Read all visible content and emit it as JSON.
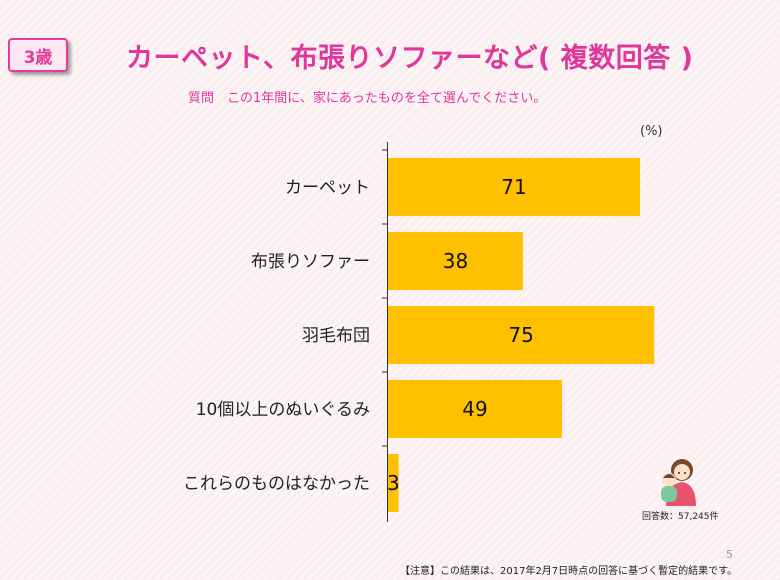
{
  "badge": "3歳",
  "title": "カーペット、布張りソファーなど( 複数回答 )",
  "subtitle": "質問　この1年間に、家にあったものを全て選んでください。",
  "unit": "(%)",
  "respondents": "回答数：57,245件",
  "footnote": "【注意】この結果は、2017年2月7日時点の回答に基づく暫定的結果です。",
  "page_number": "5",
  "colors": {
    "bar": "#ffc000",
    "accent": "#e0379b"
  },
  "illustration": "mother-holding-baby-icon",
  "chart_data": {
    "type": "bar",
    "orientation": "horizontal",
    "categories": [
      "カーペット",
      "布張りソファー",
      "羽毛布団",
      "10個以上のぬいぐるみ",
      "これらのものはなかった"
    ],
    "values": [
      71,
      38,
      75,
      49,
      3
    ],
    "xlim": [
      0,
      100
    ],
    "grid": false,
    "data_labels": true
  }
}
